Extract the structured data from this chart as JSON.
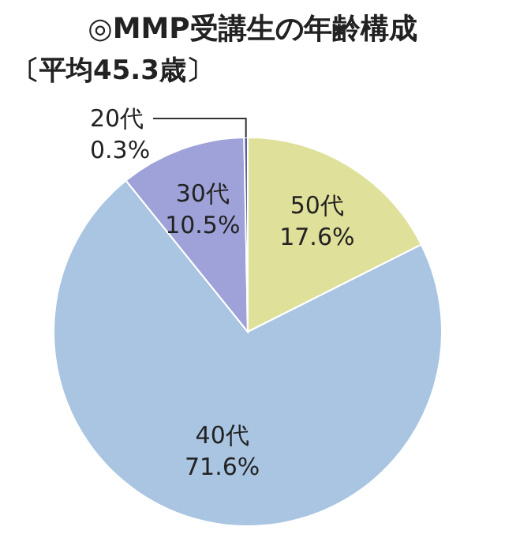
{
  "chart_data": {
    "type": "pie",
    "title": "◎MMP受講生の年齢構成",
    "subtitle": "〔平均45.3歳〕",
    "categories": [
      "50代",
      "40代",
      "30代",
      "20代"
    ],
    "values": [
      17.6,
      71.6,
      10.5,
      0.3
    ],
    "colors": [
      "#dfe09a",
      "#a9c5e2",
      "#9ea2d8",
      "#5a5f9a"
    ],
    "value_labels": [
      "17.6%",
      "71.6%",
      "10.5%",
      "0.3%"
    ]
  }
}
